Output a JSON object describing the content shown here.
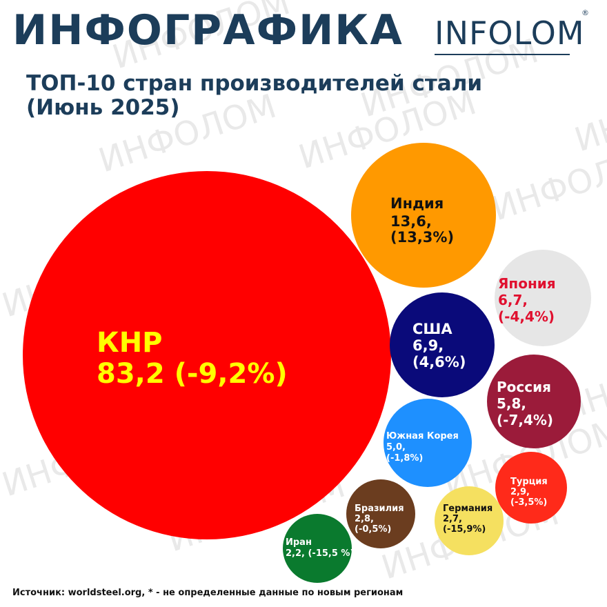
{
  "header": {
    "title": "ИНФОГРАФИКА",
    "logo_text": "INFOLOM",
    "logo_mark": "®",
    "subtitle": "ТОП-10 стран производителей стали (Июнь 2025)"
  },
  "watermark": "ИНФОЛОМ",
  "footer": "Источник: worldsteel.org,  * - не определенные данные по новым регионам",
  "chart_data": {
    "type": "bubble",
    "title": "ТОП-10 стран производителей стали (Июнь 2025)",
    "items": [
      {
        "country": "КНР",
        "value_label": "83,2 (-9,2%)",
        "value": 83.2,
        "change": -9.2,
        "color": "#ff0000",
        "text_color": "#ffff00"
      },
      {
        "country": "Индия",
        "value_label": "13,6,",
        "change_label": "(13,3%)",
        "value": 13.6,
        "change": 13.3,
        "color": "#ff9900",
        "text_color": "#111111"
      },
      {
        "country": "Япония",
        "value_label": "6,7,",
        "change_label": "(-4,4%)",
        "value": 6.7,
        "change": -4.4,
        "color": "#e6e6e6",
        "text_color": "#e0102f"
      },
      {
        "country": "США",
        "value_label": "6,9,",
        "change_label": "(4,6%)",
        "value": 6.9,
        "change": 4.6,
        "color": "#0a0a7a",
        "text_color": "#ffffff"
      },
      {
        "country": "Россия",
        "value_label": "5,8,",
        "change_label": "(-7,4%)",
        "value": 5.8,
        "change": -7.4,
        "color": "#9b1b3a",
        "text_color": "#ffffff"
      },
      {
        "country": "Южная Корея",
        "value_label": "5,0,",
        "change_label": "(-1,8%)",
        "value": 5.0,
        "change": -1.8,
        "color": "#1e90ff",
        "text_color": "#ffffff"
      },
      {
        "country": "Турция",
        "value_label": "2,9,",
        "change_label": "(-3,5%)",
        "value": 2.9,
        "change": -3.5,
        "color": "#ff2a1a",
        "text_color": "#ffffff"
      },
      {
        "country": "Германия",
        "value_label": "2,7,",
        "change_label": "(-15,9%)",
        "value": 2.7,
        "change": -15.9,
        "color": "#f5e060",
        "text_color": "#111111"
      },
      {
        "country": "Бразилия",
        "value_label": "2,8,",
        "change_label": "(-0,5%)",
        "value": 2.8,
        "change": -0.5,
        "color": "#6b3d1f",
        "text_color": "#ffffff"
      },
      {
        "country": "Иран",
        "value_label": "2,2, (-15,5 %)",
        "value": 2.2,
        "change": -15.5,
        "color": "#0a7a2e",
        "text_color": "#ffffff"
      }
    ]
  }
}
